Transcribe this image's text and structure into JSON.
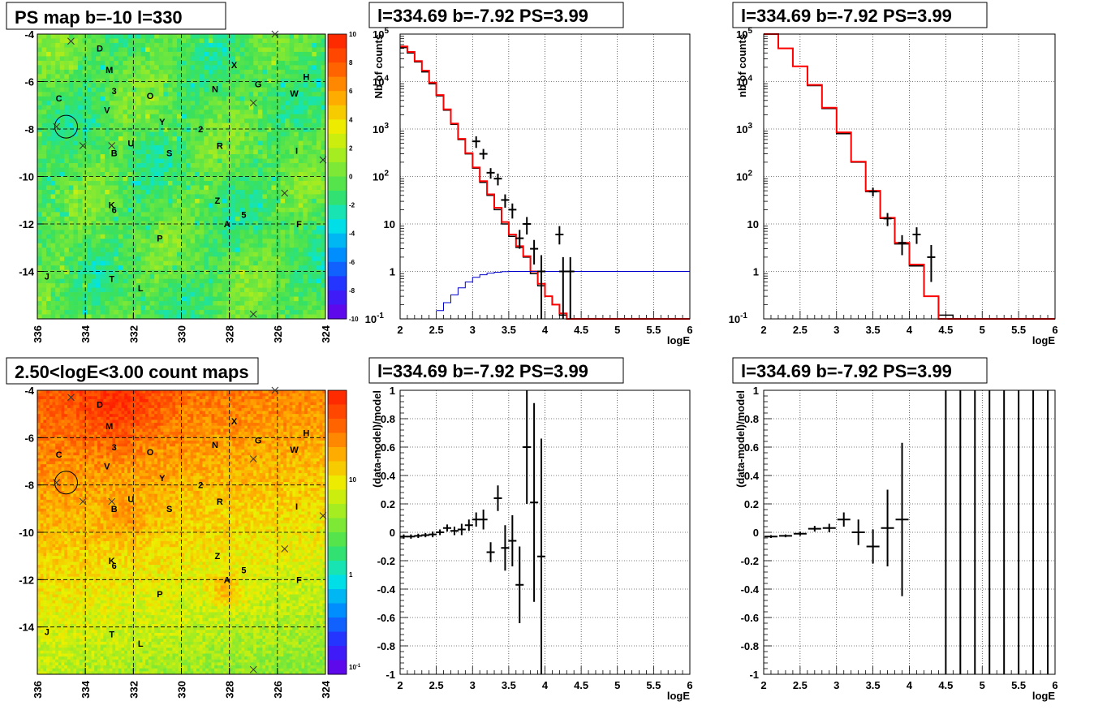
{
  "chart_data": [
    {
      "panel": "ps-map",
      "type": "heatmap",
      "title": "PS map b=-10 l=330",
      "x_ticks": [
        "336",
        "334",
        "332",
        "330",
        "328",
        "326",
        "324"
      ],
      "y_ticks": [
        "-4",
        "-6",
        "-8",
        "-10",
        "-12",
        "-14"
      ],
      "xlim": [
        336,
        324
      ],
      "ylim": [
        -16,
        -4
      ],
      "palette_ticks": [
        "10",
        "8",
        "6",
        "4",
        "2",
        "0",
        "-2",
        "-4",
        "-6",
        "-8",
        "-10"
      ],
      "zlim": [
        -10,
        10
      ],
      "source_labels": [
        {
          "text": "D",
          "l": 333.4,
          "b": -4.6
        },
        {
          "text": "M",
          "l": 333.0,
          "b": -5.5
        },
        {
          "text": "X",
          "l": 327.8,
          "b": -5.3
        },
        {
          "text": "H",
          "l": 324.8,
          "b": -5.8
        },
        {
          "text": "G",
          "l": 326.8,
          "b": -6.1
        },
        {
          "text": "N",
          "l": 328.6,
          "b": -6.3
        },
        {
          "text": "3",
          "l": 332.8,
          "b": -6.4
        },
        {
          "text": "W",
          "l": 325.3,
          "b": -6.5
        },
        {
          "text": "O",
          "l": 331.3,
          "b": -6.6
        },
        {
          "text": "C",
          "l": 335.1,
          "b": -6.7
        },
        {
          "text": "V",
          "l": 333.1,
          "b": -7.2
        },
        {
          "text": "Y",
          "l": 330.8,
          "b": -7.7
        },
        {
          "text": "2",
          "l": 329.2,
          "b": -8.0
        },
        {
          "text": "U",
          "l": 332.1,
          "b": -8.6
        },
        {
          "text": "R",
          "l": 328.4,
          "b": -8.7
        },
        {
          "text": "I",
          "l": 325.2,
          "b": -8.9
        },
        {
          "text": "S",
          "l": 330.5,
          "b": -9.0
        },
        {
          "text": "B",
          "l": 332.8,
          "b": -9.0
        },
        {
          "text": "Z",
          "l": 328.5,
          "b": -11.0
        },
        {
          "text": "K",
          "l": 332.9,
          "b": -11.2
        },
        {
          "text": "6",
          "l": 332.8,
          "b": -11.4
        },
        {
          "text": "5",
          "l": 327.4,
          "b": -11.6
        },
        {
          "text": "A",
          "l": 328.1,
          "b": -12.0
        },
        {
          "text": "F",
          "l": 325.1,
          "b": -12.0
        },
        {
          "text": "P",
          "l": 330.9,
          "b": -12.6
        },
        {
          "text": "J",
          "l": 335.6,
          "b": -14.2
        },
        {
          "text": "T",
          "l": 332.9,
          "b": -14.3
        },
        {
          "text": "L",
          "l": 331.7,
          "b": -14.7
        }
      ],
      "crosses": [
        {
          "l": 334.6,
          "b": -4.3
        },
        {
          "l": 326.1,
          "b": -4.0
        },
        {
          "l": 327.0,
          "b": -6.9
        },
        {
          "l": 335.2,
          "b": -7.9
        },
        {
          "l": 334.1,
          "b": -8.7
        },
        {
          "l": 332.9,
          "b": -8.7
        },
        {
          "l": 324.1,
          "b": -9.3
        },
        {
          "l": 325.7,
          "b": -10.7
        },
        {
          "l": 327.0,
          "b": -15.8
        }
      ],
      "circle": {
        "l": 334.8,
        "b": -7.9
      }
    },
    {
      "panel": "spectrum-1",
      "type": "line",
      "title": "l=334.69 b=-7.92 PS=3.99",
      "xlabel": "logE",
      "ylabel": "Nb of counts",
      "xlim": [
        2,
        6
      ],
      "ylim": [
        0.1,
        100000
      ],
      "yscale": "log",
      "grid": true,
      "x_ticks": [
        "2",
        "2.5",
        "3",
        "3.5",
        "4",
        "4.5",
        "5",
        "5.5",
        "6"
      ],
      "y_ticks": [
        "10",
        "1",
        "10"
      ],
      "y_tick_sup": [
        "5",
        "4",
        "3",
        "2",
        "",
        "",
        "-1"
      ],
      "series": [
        {
          "kind": "step",
          "color": "#000000",
          "edges": [
            2.0,
            2.1,
            2.2,
            2.3,
            2.4,
            2.5,
            2.6,
            2.7,
            2.8,
            2.9,
            3.0,
            3.1,
            3.2,
            3.3,
            3.4,
            3.5,
            3.6,
            3.7,
            3.8,
            3.9,
            4.0,
            4.1,
            4.2,
            4.3,
            4.4,
            4.5,
            5.0,
            6.0
          ],
          "values": [
            52000,
            40000,
            26000,
            16000,
            9000,
            5000,
            2500,
            1250,
            600,
            300,
            150,
            75,
            40,
            20,
            10,
            5.5,
            3.2,
            2.0,
            0.9,
            0.5,
            0.3,
            0.2,
            0.12,
            0.1,
            0.1,
            0.1,
            0.1
          ]
        },
        {
          "kind": "step",
          "color": "#ff0000",
          "edges": [
            2.0,
            2.1,
            2.2,
            2.3,
            2.4,
            2.5,
            2.6,
            2.7,
            2.8,
            2.9,
            3.0,
            3.1,
            3.2,
            3.3,
            3.4,
            3.5,
            3.6,
            3.7,
            3.8,
            3.9,
            4.0,
            4.1,
            4.2,
            4.3,
            4.4,
            4.5,
            5.0,
            6.0
          ],
          "values": [
            55000,
            42000,
            27000,
            17000,
            9500,
            5200,
            2600,
            1300,
            620,
            310,
            155,
            80,
            42,
            22,
            11,
            6,
            3.4,
            2.1,
            1.0,
            0.55,
            0.3,
            0.2,
            0.13,
            0.1,
            0.1,
            0.1,
            0.1
          ]
        },
        {
          "kind": "step",
          "color": "#0000cc",
          "edges": [
            2.5,
            2.6,
            2.7,
            2.8,
            2.9,
            3.0,
            3.1,
            3.2,
            3.3,
            3.4,
            3.5,
            4.0,
            6.0
          ],
          "values": [
            0.15,
            0.22,
            0.32,
            0.45,
            0.6,
            0.75,
            0.85,
            0.92,
            0.96,
            0.99,
            1.0,
            1.0
          ]
        },
        {
          "kind": "points",
          "color": "#000000",
          "points": [
            {
              "x": 3.05,
              "y": 550,
              "ylo": 400,
              "yhi": 700
            },
            {
              "x": 3.15,
              "y": 300,
              "ylo": 230,
              "yhi": 380
            },
            {
              "x": 3.25,
              "y": 120,
              "ylo": 90,
              "yhi": 150
            },
            {
              "x": 3.35,
              "y": 90,
              "ylo": 65,
              "yhi": 115
            },
            {
              "x": 3.45,
              "y": 32,
              "ylo": 22,
              "yhi": 42
            },
            {
              "x": 3.55,
              "y": 20,
              "ylo": 13,
              "yhi": 27
            },
            {
              "x": 3.65,
              "y": 5,
              "ylo": 3,
              "yhi": 7.5
            },
            {
              "x": 3.75,
              "y": 10,
              "ylo": 6,
              "yhi": 14
            },
            {
              "x": 3.85,
              "y": 3,
              "ylo": 1.4,
              "yhi": 4.6
            },
            {
              "x": 3.95,
              "y": 1,
              "ylo": 0.1,
              "yhi": 2.2
            },
            {
              "x": 4.2,
              "y": 6,
              "ylo": 3.7,
              "yhi": 9
            },
            {
              "x": 4.25,
              "y": 1,
              "ylo": 0.1,
              "yhi": 2
            },
            {
              "x": 4.35,
              "y": 1,
              "ylo": 0.1,
              "yhi": 2
            }
          ]
        }
      ]
    },
    {
      "panel": "spectrum-2",
      "type": "line",
      "title": "l=334.69 b=-7.92 PS=3.99",
      "xlabel": "logE",
      "ylabel": "nb of counts",
      "xlim": [
        2,
        6
      ],
      "ylim": [
        0.1,
        100000
      ],
      "yscale": "log",
      "grid": true,
      "x_ticks": [
        "2",
        "2.5",
        "3",
        "3.5",
        "4",
        "4.5",
        "5",
        "5.5",
        "6"
      ],
      "y_ticks": [
        "10",
        "1",
        "10"
      ],
      "y_tick_sup": [
        "5",
        "4",
        "3",
        "2",
        "",
        "",
        "-1"
      ],
      "series": [
        {
          "kind": "step",
          "color": "#000000",
          "edges": [
            2.0,
            2.2,
            2.4,
            2.6,
            2.8,
            3.0,
            3.2,
            3.4,
            3.6,
            3.8,
            4.0,
            4.2,
            4.4,
            4.6,
            5.0,
            6.0
          ],
          "values": [
            100000,
            50000,
            21000,
            8200,
            2700,
            800,
            200,
            48,
            13,
            3.8,
            1.3,
            0.3,
            0.12,
            0.1,
            0.1
          ]
        },
        {
          "kind": "step",
          "color": "#ff0000",
          "edges": [
            2.0,
            2.2,
            2.4,
            2.6,
            2.8,
            3.0,
            3.2,
            3.4,
            3.6,
            3.8,
            4.0,
            4.2,
            4.4,
            4.6,
            5.0,
            6.0
          ],
          "values": [
            100000,
            50000,
            21000,
            8500,
            2800,
            850,
            205,
            50,
            13.5,
            4,
            1.4,
            0.3,
            0.1,
            0.1,
            0.1
          ]
        },
        {
          "kind": "points",
          "color": "#000000",
          "points": [
            {
              "x": 3.5,
              "y": 48,
              "ylo": 38,
              "yhi": 58
            },
            {
              "x": 3.7,
              "y": 13,
              "ylo": 9,
              "yhi": 17
            },
            {
              "x": 3.9,
              "y": 4,
              "ylo": 2.2,
              "yhi": 5.8
            },
            {
              "x": 4.1,
              "y": 6,
              "ylo": 3.8,
              "yhi": 8.5
            },
            {
              "x": 4.3,
              "y": 2,
              "ylo": 0.6,
              "yhi": 3.6
            }
          ]
        }
      ]
    },
    {
      "panel": "count-map",
      "type": "heatmap",
      "title": "2.50<logE<3.00 count maps",
      "x_ticks": [
        "336",
        "334",
        "332",
        "330",
        "328",
        "326",
        "324"
      ],
      "y_ticks": [
        "-4",
        "-6",
        "-8",
        "-10",
        "-12",
        "-14"
      ],
      "xlim": [
        336,
        324
      ],
      "ylim": [
        -16,
        -4
      ],
      "palette_ticks": [
        "10",
        "1",
        "10"
      ],
      "palette_tick_sup": [
        "",
        "",
        "-1"
      ],
      "zscale": "log"
    },
    {
      "panel": "residual-1",
      "type": "scatter",
      "title": "l=334.69 b=-7.92 PS=3.99",
      "xlabel": "logE",
      "ylabel": "(data-model)/model",
      "xlim": [
        2,
        6
      ],
      "ylim": [
        -1,
        1
      ],
      "grid": true,
      "x_ticks": [
        "2",
        "2.5",
        "3",
        "3.5",
        "4",
        "4.5",
        "5",
        "5.5",
        "6"
      ],
      "y_ticks": [
        "1",
        "0.8",
        "0.6",
        "0.4",
        "0.2",
        "0",
        "-0.2",
        "-0.4",
        "-0.6",
        "-0.8",
        "-1"
      ],
      "points": [
        {
          "x": 2.05,
          "y": -0.03,
          "err": 0.015
        },
        {
          "x": 2.15,
          "y": -0.03,
          "err": 0.015
        },
        {
          "x": 2.25,
          "y": -0.025,
          "err": 0.015
        },
        {
          "x": 2.35,
          "y": -0.02,
          "err": 0.015
        },
        {
          "x": 2.45,
          "y": -0.015,
          "err": 0.02
        },
        {
          "x": 2.55,
          "y": 0.0,
          "err": 0.02
        },
        {
          "x": 2.65,
          "y": 0.03,
          "err": 0.025
        },
        {
          "x": 2.75,
          "y": 0.01,
          "err": 0.03
        },
        {
          "x": 2.85,
          "y": 0.02,
          "err": 0.04
        },
        {
          "x": 2.95,
          "y": 0.05,
          "err": 0.04
        },
        {
          "x": 3.05,
          "y": 0.09,
          "err": 0.05
        },
        {
          "x": 3.15,
          "y": 0.09,
          "err": 0.07
        },
        {
          "x": 3.25,
          "y": -0.14,
          "err": 0.07
        },
        {
          "x": 3.35,
          "y": 0.24,
          "err": 0.09
        },
        {
          "x": 3.45,
          "y": -0.11,
          "err": 0.16
        },
        {
          "x": 3.55,
          "y": -0.06,
          "err": 0.18
        },
        {
          "x": 3.65,
          "y": -0.37,
          "err": 0.27
        },
        {
          "x": 3.75,
          "y": 0.6,
          "err": 0.4
        },
        {
          "x": 3.85,
          "y": 0.21,
          "err": 0.7
        },
        {
          "x": 3.95,
          "y": -0.17,
          "err": 0.83
        }
      ]
    },
    {
      "panel": "residual-2",
      "type": "scatter",
      "title": "l=334.69 b=-7.92 PS=3.99",
      "xlabel": "logE",
      "ylabel": "(data-model)/model",
      "xlim": [
        2,
        6
      ],
      "ylim": [
        -1,
        1
      ],
      "grid": true,
      "x_ticks": [
        "2",
        "2.5",
        "3",
        "3.5",
        "4",
        "4.5",
        "5",
        "5.5",
        "6"
      ],
      "y_ticks": [
        "1",
        "0.8",
        "0.6",
        "0.4",
        "0.2",
        "0",
        "-0.2",
        "-0.4",
        "-0.6",
        "-0.8",
        "-1"
      ],
      "points": [
        {
          "x": 2.1,
          "y": -0.03,
          "err": 0.01
        },
        {
          "x": 2.3,
          "y": -0.025,
          "err": 0.01
        },
        {
          "x": 2.5,
          "y": -0.01,
          "err": 0.015
        },
        {
          "x": 2.7,
          "y": 0.025,
          "err": 0.02
        },
        {
          "x": 2.9,
          "y": 0.03,
          "err": 0.03
        },
        {
          "x": 3.1,
          "y": 0.09,
          "err": 0.05
        },
        {
          "x": 3.3,
          "y": 0.0,
          "err": 0.09
        },
        {
          "x": 3.5,
          "y": -0.1,
          "err": 0.12
        },
        {
          "x": 3.7,
          "y": 0.03,
          "err": 0.27
        },
        {
          "x": 3.9,
          "y": 0.09,
          "err": 0.54
        },
        {
          "x": 4.5,
          "y": 0,
          "err": 1.2
        },
        {
          "x": 4.7,
          "y": 0,
          "err": 1.2
        },
        {
          "x": 4.9,
          "y": 0,
          "err": 1.2
        },
        {
          "x": 5.1,
          "y": 0,
          "err": 1.2
        },
        {
          "x": 5.3,
          "y": 0,
          "err": 1.2
        },
        {
          "x": 5.5,
          "y": 0,
          "err": 1.2
        },
        {
          "x": 5.7,
          "y": 0,
          "err": 1.2
        },
        {
          "x": 5.9,
          "y": 0,
          "err": 1.2
        }
      ]
    }
  ]
}
